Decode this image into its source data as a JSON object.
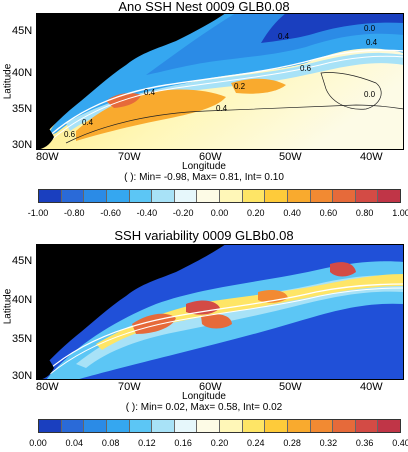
{
  "panels": [
    {
      "title": "Ano SSH Nest 0009 GLB0.08",
      "ylabel": "Latitude",
      "xlabel": "Longitude",
      "xticks": [
        "80W",
        "70W",
        "60W",
        "50W",
        "40W"
      ],
      "yticks": [
        "45N",
        "40N",
        "35N",
        "30N"
      ],
      "stats": "( ): Min= -0.98, Max= 0.81, Int= 0.10",
      "contour_labels": [
        "0.6",
        "0.4",
        "0.4",
        "0.2",
        "0.6",
        "0.4",
        "0.4",
        "0.0",
        "0.0",
        "0.4"
      ],
      "colorbar": {
        "labels": [
          "-1.00",
          "-0.80",
          "-0.60",
          "-0.40",
          "-0.20",
          "0.00",
          "0.20",
          "0.40",
          "0.60",
          "0.80",
          "1.00"
        ],
        "colors": [
          "#1a3fbf",
          "#2a6ad8",
          "#2b8be6",
          "#35a7f0",
          "#5cc6f5",
          "#a8e2f7",
          "#e6f7fb",
          "#fdfbe6",
          "#fff7b8",
          "#fee566",
          "#fecb3a",
          "#f9aa2e",
          "#f28a32",
          "#e66a3a",
          "#d34b45",
          "#c03547"
        ]
      }
    },
    {
      "title": "SSH variability 0009 GLBb0.08",
      "ylabel": "Latitude",
      "xlabel": "Longitude",
      "xticks": [
        "80W",
        "70W",
        "60W",
        "50W",
        "40W"
      ],
      "yticks": [
        "45N",
        "40N",
        "35N",
        "30N"
      ],
      "stats": "( ): Min= 0.02, Max= 0.58, Int= 0.02",
      "colorbar": {
        "labels": [
          "0.00",
          "0.04",
          "0.08",
          "0.12",
          "0.16",
          "0.20",
          "0.24",
          "0.28",
          "0.32",
          "0.36",
          "0.40"
        ],
        "colors": [
          "#1a3fbf",
          "#2a6ad8",
          "#2b8be6",
          "#35a7f0",
          "#5cc6f5",
          "#a8e2f7",
          "#e6f7fb",
          "#fdfbe6",
          "#fff7b8",
          "#fee566",
          "#fecb3a",
          "#f9aa2e",
          "#f28a32",
          "#e66a3a",
          "#d34b45",
          "#c03547"
        ]
      }
    }
  ],
  "colors": {
    "land": "#000000",
    "ocean_low": "#2050d8",
    "ocean_high": "#c03547",
    "contour": "#222222",
    "jet": "#ffffff"
  }
}
